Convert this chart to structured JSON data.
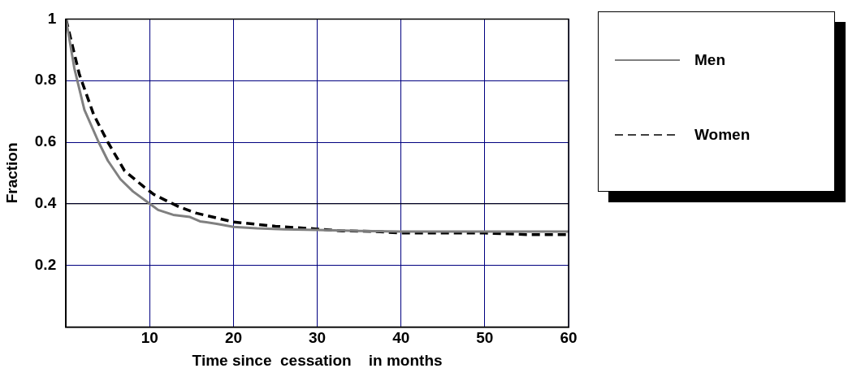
{
  "chart_data": {
    "type": "line",
    "xlabel": "Time since  cessation    in months",
    "ylabel": "Fraction",
    "xlim": [
      0,
      60
    ],
    "xticks": [
      10,
      20,
      30,
      40,
      50,
      60
    ],
    "ylim": [
      0,
      1
    ],
    "yticks": [
      0.2,
      0.4,
      0.6,
      0.8,
      1
    ],
    "grid": true,
    "legend": "right",
    "marker": "none",
    "ref_lines": [
      {
        "axis": "y",
        "value": 0.4,
        "color": "#000000"
      }
    ],
    "series": [
      {
        "name": "Men",
        "color": "#808080",
        "line_style": "solid",
        "x": [
          0,
          1,
          2.2,
          3.9,
          5,
          6.5,
          8,
          10,
          11,
          12.8,
          14.8,
          16,
          18,
          20,
          22.8,
          26,
          30,
          35,
          40,
          50,
          60
        ],
        "values": [
          1,
          0.84,
          0.705,
          0.6,
          0.54,
          0.48,
          0.44,
          0.4,
          0.38,
          0.364,
          0.357,
          0.343,
          0.335,
          0.325,
          0.32,
          0.317,
          0.315,
          0.312,
          0.31,
          0.31,
          0.31
        ]
      },
      {
        "name": "Women",
        "color": "#000000",
        "line_style": "dashed",
        "x": [
          0,
          1.6,
          3.3,
          5,
          7,
          9.3,
          10.5,
          13.5,
          15.5,
          20,
          25,
          30,
          33,
          37,
          40,
          50,
          55,
          60
        ],
        "values": [
          1,
          0.82,
          0.69,
          0.6,
          0.507,
          0.455,
          0.43,
          0.39,
          0.37,
          0.341,
          0.327,
          0.318,
          0.312,
          0.31,
          0.305,
          0.305,
          0.3,
          0.3
        ]
      }
    ]
  }
}
